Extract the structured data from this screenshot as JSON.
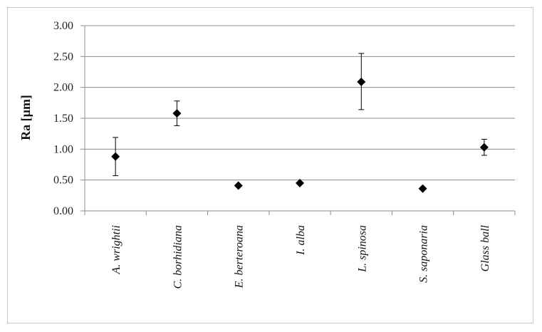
{
  "chart_data": {
    "type": "scatter",
    "ylabel": "Ra [µm]",
    "ylim": [
      0,
      3
    ],
    "yticks": [
      "0.00",
      "0.50",
      "1.00",
      "1.50",
      "2.00",
      "2.50",
      "3.00"
    ],
    "grid": true,
    "categories": [
      "A. wrightii",
      "C. borhidiana",
      "E. berteroana",
      "I. alba",
      "L. spinosa",
      "S. saponaria",
      "Glass ball"
    ],
    "values": [
      0.88,
      1.58,
      0.41,
      0.45,
      2.09,
      0.36,
      1.03
    ],
    "error_low": [
      0.57,
      1.38,
      0.41,
      0.45,
      1.64,
      0.36,
      0.9
    ],
    "error_high": [
      1.19,
      1.78,
      0.41,
      0.45,
      2.55,
      0.36,
      1.16
    ],
    "marker": "diamond",
    "colors": {
      "marker": "#000000",
      "grid": "#8c8c8c",
      "axis": "#8c8c8c"
    }
  }
}
